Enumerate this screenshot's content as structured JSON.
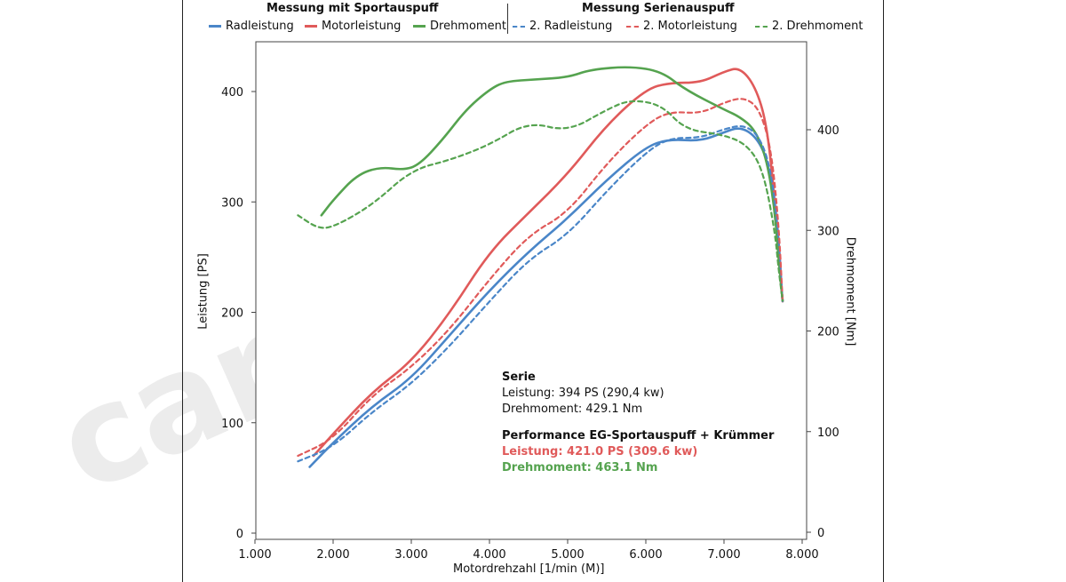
{
  "legend": {
    "group1_title": "Messung mit Sportauspuff",
    "group2_title": "Messung Serienauspuff"
  },
  "watermark": "carGraphic",
  "annotation": {
    "serie_title": "Serie",
    "serie_power": "Leistung: 394 PS (290,4 kw)",
    "serie_torque": "Drehmoment: 429.1 Nm",
    "perf_title": "Performance EG-Sportauspuff + Krümmer",
    "perf_power": "Leistung: 421.0 PS (309.6 kw)",
    "perf_torque": "Drehmoment: 463.1 Nm"
  },
  "colors": {
    "blue": "#4a86c8",
    "red": "#e05a5a",
    "green": "#55a34f"
  },
  "chart_data": {
    "type": "line",
    "xlabel": "Motordrehzahl [1/min (M)]",
    "ylabel": "Leistung [PS]",
    "y2label": "Drehmoment [Nm]",
    "xlim": [
      1000,
      8000
    ],
    "ylim": [
      0,
      450
    ],
    "y2lim": [
      0,
      500
    ],
    "x_ticks": [
      "1.000",
      "2.000",
      "3.000",
      "4.000",
      "5.000",
      "6.000",
      "7.000",
      "8.000"
    ],
    "y_ticks": [
      "0",
      "100",
      "200",
      "300",
      "400"
    ],
    "y2_ticks": [
      "0",
      "100",
      "200",
      "300",
      "400"
    ],
    "grid": false,
    "legend_position": "top",
    "series": [
      {
        "name": "Radleistung",
        "axis": "left",
        "color": "#4a86c8",
        "dashed": false,
        "points": [
          [
            1700,
            60
          ],
          [
            2000,
            82
          ],
          [
            2500,
            115
          ],
          [
            3000,
            140
          ],
          [
            3500,
            180
          ],
          [
            4000,
            220
          ],
          [
            4500,
            255
          ],
          [
            5000,
            285
          ],
          [
            5500,
            320
          ],
          [
            6000,
            350
          ],
          [
            6300,
            357
          ],
          [
            6700,
            355
          ],
          [
            7000,
            363
          ],
          [
            7200,
            368
          ],
          [
            7400,
            360
          ],
          [
            7550,
            340
          ],
          [
            7650,
            300
          ],
          [
            7700,
            250
          ],
          [
            7750,
            210
          ]
        ]
      },
      {
        "name": "Motorleistung",
        "axis": "left",
        "color": "#e05a5a",
        "dashed": false,
        "points": [
          [
            1750,
            70
          ],
          [
            2000,
            90
          ],
          [
            2500,
            128
          ],
          [
            3000,
            155
          ],
          [
            3500,
            200
          ],
          [
            4000,
            255
          ],
          [
            4500,
            290
          ],
          [
            5000,
            325
          ],
          [
            5500,
            370
          ],
          [
            6000,
            402
          ],
          [
            6300,
            408
          ],
          [
            6700,
            408
          ],
          [
            7000,
            418
          ],
          [
            7200,
            422
          ],
          [
            7400,
            405
          ],
          [
            7550,
            370
          ],
          [
            7650,
            300
          ],
          [
            7700,
            250
          ],
          [
            7750,
            210
          ]
        ]
      },
      {
        "name": "Drehmoment",
        "axis": "right",
        "color": "#55a34f",
        "dashed": false,
        "points": [
          [
            1850,
            315
          ],
          [
            2000,
            330
          ],
          [
            2300,
            355
          ],
          [
            2600,
            363
          ],
          [
            2900,
            360
          ],
          [
            3100,
            365
          ],
          [
            3400,
            390
          ],
          [
            3700,
            420
          ],
          [
            4000,
            440
          ],
          [
            4200,
            448
          ],
          [
            4600,
            450
          ],
          [
            5000,
            452
          ],
          [
            5300,
            460
          ],
          [
            5800,
            463
          ],
          [
            6200,
            458
          ],
          [
            6500,
            440
          ],
          [
            7000,
            420
          ],
          [
            7200,
            413
          ],
          [
            7400,
            400
          ],
          [
            7550,
            370
          ],
          [
            7650,
            320
          ],
          [
            7700,
            270
          ],
          [
            7750,
            230
          ]
        ]
      },
      {
        "name": "2. Radleistung",
        "axis": "left",
        "color": "#4a86c8",
        "dashed": true,
        "points": [
          [
            1550,
            65
          ],
          [
            2000,
            78
          ],
          [
            2500,
            110
          ],
          [
            3000,
            135
          ],
          [
            3500,
            170
          ],
          [
            4000,
            210
          ],
          [
            4500,
            248
          ],
          [
            5000,
            270
          ],
          [
            5500,
            310
          ],
          [
            6000,
            345
          ],
          [
            6300,
            358
          ],
          [
            6700,
            358
          ],
          [
            7000,
            366
          ],
          [
            7250,
            370
          ],
          [
            7450,
            360
          ],
          [
            7600,
            330
          ],
          [
            7700,
            270
          ],
          [
            7750,
            210
          ]
        ]
      },
      {
        "name": "2. Motorleistung",
        "axis": "left",
        "color": "#e05a5a",
        "dashed": true,
        "points": [
          [
            1550,
            70
          ],
          [
            2000,
            85
          ],
          [
            2500,
            125
          ],
          [
            3000,
            150
          ],
          [
            3500,
            185
          ],
          [
            4000,
            230
          ],
          [
            4500,
            270
          ],
          [
            5000,
            290
          ],
          [
            5500,
            335
          ],
          [
            6000,
            370
          ],
          [
            6300,
            382
          ],
          [
            6700,
            380
          ],
          [
            7000,
            390
          ],
          [
            7250,
            395
          ],
          [
            7450,
            385
          ],
          [
            7600,
            350
          ],
          [
            7700,
            280
          ],
          [
            7750,
            210
          ]
        ]
      },
      {
        "name": "2. Drehmoment",
        "axis": "right",
        "color": "#55a34f",
        "dashed": true,
        "points": [
          [
            1550,
            315
          ],
          [
            1800,
            302
          ],
          [
            2000,
            303
          ],
          [
            2500,
            325
          ],
          [
            3000,
            360
          ],
          [
            3500,
            370
          ],
          [
            4000,
            385
          ],
          [
            4500,
            408
          ],
          [
            5000,
            398
          ],
          [
            5500,
            420
          ],
          [
            5800,
            430
          ],
          [
            6200,
            425
          ],
          [
            6500,
            400
          ],
          [
            7000,
            395
          ],
          [
            7300,
            385
          ],
          [
            7500,
            360
          ],
          [
            7650,
            300
          ],
          [
            7700,
            260
          ],
          [
            7750,
            230
          ]
        ]
      }
    ]
  }
}
